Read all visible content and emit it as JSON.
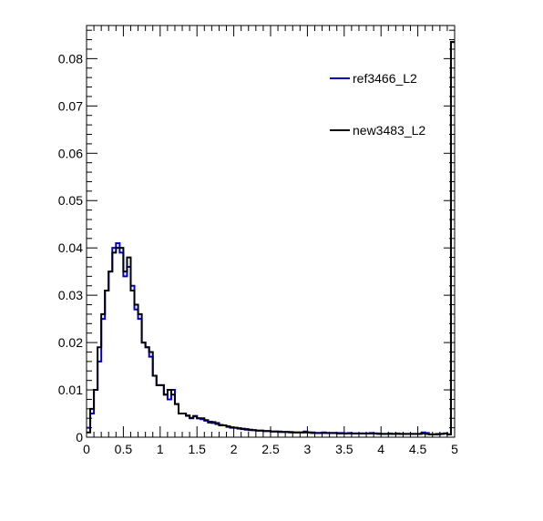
{
  "chart_data": {
    "type": "step-histogram",
    "xlim": [
      0,
      5
    ],
    "ylim": [
      0,
      0.087
    ],
    "bin_width": 0.05,
    "x_ticks": [
      "0",
      "0.5",
      "1",
      "1.5",
      "2",
      "2.5",
      "3",
      "3.5",
      "4",
      "4.5",
      "5"
    ],
    "y_ticks": [
      "0",
      "0.01",
      "0.02",
      "0.03",
      "0.04",
      "0.05",
      "0.06",
      "0.07",
      "0.08"
    ],
    "legend_position": "top-right",
    "series": [
      {
        "name": "ref3466_L2",
        "color": "#0000cc",
        "values": [
          0.002,
          0.005,
          0.01,
          0.016,
          0.025,
          0.031,
          0.035,
          0.04,
          0.041,
          0.039,
          0.034,
          0.036,
          0.032,
          0.027,
          0.025,
          0.02,
          0.019,
          0.017,
          0.013,
          0.011,
          0.011,
          0.009,
          0.008,
          0.01,
          0.007,
          0.005,
          0.005,
          0.0045,
          0.004,
          0.0045,
          0.004,
          0.0038,
          0.0035,
          0.0033,
          0.003,
          0.003,
          0.0025,
          0.0025,
          0.0023,
          0.002,
          0.002,
          0.0018,
          0.0018,
          0.0016,
          0.0015,
          0.0015,
          0.0014,
          0.0014,
          0.0013,
          0.0013,
          0.0012,
          0.0012,
          0.0012,
          0.0011,
          0.0011,
          0.0011,
          0.001,
          0.001,
          0.001,
          0.0012,
          0.001,
          0.001,
          0.0009,
          0.0009,
          0.001,
          0.0009,
          0.0009,
          0.0009,
          0.0009,
          0.0009,
          0.0008,
          0.0009,
          0.0008,
          0.0008,
          0.0008,
          0.0008,
          0.0008,
          0.0009,
          0.0008,
          0.0008,
          0.0007,
          0.0007,
          0.0008,
          0.0007,
          0.0008,
          0.0007,
          0.0007,
          0.0007,
          0.0007,
          0.0007,
          0.0007,
          0.001,
          0.0009,
          0.0006,
          0.0006,
          0.0007,
          0.0007,
          0.0008,
          0.0006,
          0.0835
        ]
      },
      {
        "name": "new3483_L2",
        "color": "#000000",
        "values": [
          0.001,
          0.006,
          0.01,
          0.019,
          0.026,
          0.031,
          0.035,
          0.039,
          0.04,
          0.04,
          0.035,
          0.038,
          0.031,
          0.028,
          0.026,
          0.02,
          0.019,
          0.018,
          0.013,
          0.011,
          0.011,
          0.009,
          0.01,
          0.009,
          0.007,
          0.005,
          0.005,
          0.0046,
          0.0041,
          0.0044,
          0.004,
          0.004,
          0.0036,
          0.0031,
          0.0032,
          0.0028,
          0.0026,
          0.0025,
          0.0022,
          0.0021,
          0.002,
          0.0019,
          0.0017,
          0.0017,
          0.0016,
          0.0015,
          0.0014,
          0.0014,
          0.0013,
          0.0013,
          0.0012,
          0.0012,
          0.0011,
          0.0011,
          0.0011,
          0.001,
          0.001,
          0.001,
          0.001,
          0.001,
          0.001,
          0.0009,
          0.0009,
          0.0009,
          0.0009,
          0.0009,
          0.0009,
          0.0009,
          0.0008,
          0.0008,
          0.0008,
          0.0008,
          0.0008,
          0.0008,
          0.0008,
          0.0008,
          0.0008,
          0.0008,
          0.0008,
          0.0007,
          0.0007,
          0.0007,
          0.0007,
          0.0007,
          0.0007,
          0.0007,
          0.0007,
          0.0007,
          0.0007,
          0.0007,
          0.0007,
          0.0008,
          0.0007,
          0.0006,
          0.0006,
          0.0006,
          0.0007,
          0.0008,
          0.0006,
          0.0835
        ]
      }
    ]
  }
}
